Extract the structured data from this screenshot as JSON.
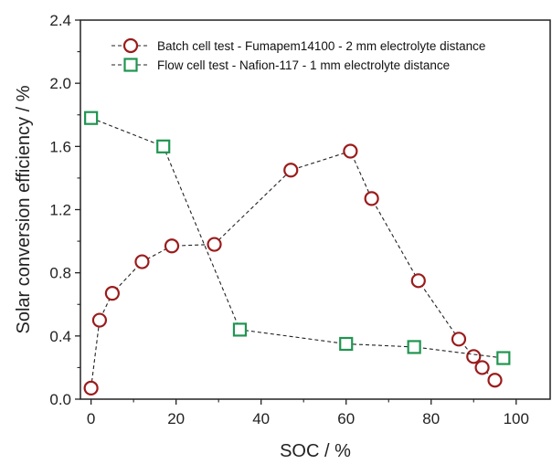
{
  "chart_data": {
    "type": "scatter",
    "xlabel": "SOC / %",
    "ylabel": "Solar conversion efficiency / %",
    "xlim": [
      -2.5,
      108
    ],
    "ylim": [
      0,
      2.4
    ],
    "xticks": [
      0,
      20,
      40,
      60,
      80,
      100
    ],
    "yticks": [
      0.0,
      0.4,
      0.8,
      1.2,
      1.6,
      2.0,
      2.4
    ],
    "ytick_labels": [
      "0.0",
      "0.4",
      "0.8",
      "1.2",
      "1.6",
      "2.0",
      "2.4"
    ],
    "grid": false,
    "legend_position": "top-left",
    "series": [
      {
        "name": "Batch cell test - Fumapem14100 - 2 mm electrolyte distance",
        "marker": "circle",
        "color": "#9b1b1b",
        "line": "dashed",
        "points": [
          [
            0,
            0.07
          ],
          [
            2,
            0.5
          ],
          [
            5,
            0.67
          ],
          [
            12,
            0.87
          ],
          [
            19,
            0.97
          ],
          [
            29,
            0.98
          ],
          [
            47,
            1.45
          ],
          [
            61,
            1.57
          ],
          [
            66,
            1.27
          ],
          [
            77,
            0.75
          ],
          [
            86.5,
            0.38
          ],
          [
            90,
            0.27
          ],
          [
            92,
            0.2
          ],
          [
            95,
            0.12
          ]
        ]
      },
      {
        "name": "Flow cell test - Nafion-117 - 1 mm electrolyte distance",
        "marker": "square",
        "color": "#1f9550",
        "line": "dashed",
        "points": [
          [
            0,
            1.78
          ],
          [
            17,
            1.6
          ],
          [
            35,
            0.44
          ],
          [
            60,
            0.35
          ],
          [
            76,
            0.33
          ],
          [
            97,
            0.26
          ]
        ]
      }
    ]
  }
}
